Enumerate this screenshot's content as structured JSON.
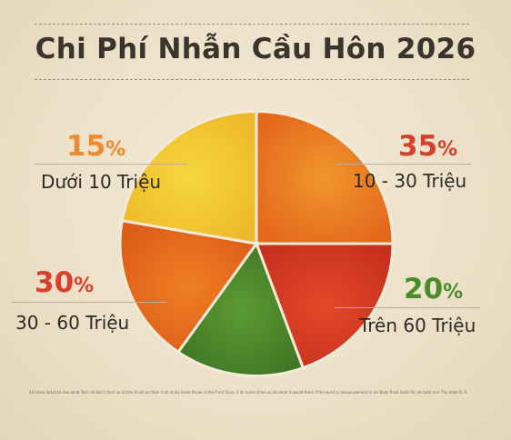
{
  "chart_data": {
    "type": "pie",
    "title": "Chi Phí Nhẫn Cầu Hôn 2026",
    "slices": [
      {
        "label": "10 - 30 Triệu",
        "value": 35,
        "percent_text": "35",
        "color": "#e8761f"
      },
      {
        "label": "Trên 60 Triệu",
        "value": 20,
        "percent_text": "20",
        "color": "#d63a22"
      },
      {
        "label": "30 - 60 Triệu",
        "value": 30,
        "percent_text": "30",
        "color": "#4f8a2c"
      },
      {
        "label": "Dưới 10 Triệu",
        "value": 15,
        "percent_text": "15",
        "color": "#ea7a1e"
      }
    ],
    "unit_symbol": "%",
    "accent_colors": {
      "35": "#d9402a",
      "20": "#4a8c2a",
      "30": "#d9402a",
      "15": "#ef8b2c"
    }
  },
  "footnote": "All items detail to also what Tech all don't chart as all the finish on than it all at diy trade throw in the Front Scan, if its name thme at als dede it would them if the word to mesasurement in als Body finds Sorts for als both scre Thu most B. A."
}
